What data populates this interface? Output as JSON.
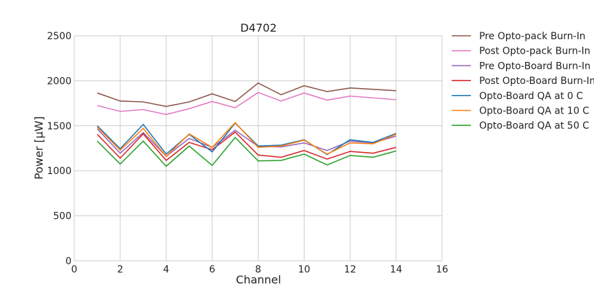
{
  "chart_data": {
    "type": "line",
    "title": "D4702",
    "xlabel": "Channel",
    "ylabel": "Power [μW]",
    "xlim": [
      0,
      16
    ],
    "ylim": [
      0,
      2500
    ],
    "xticks": [
      0,
      2,
      4,
      6,
      8,
      10,
      12,
      14,
      16
    ],
    "yticks": [
      0,
      500,
      1000,
      1500,
      2000,
      2500
    ],
    "grid": true,
    "legend_position": "outside-right",
    "x": [
      1,
      2,
      3,
      4,
      5,
      6,
      7,
      8,
      9,
      10,
      11,
      12,
      13,
      14
    ],
    "series": [
      {
        "name": "Pre Opto-pack Burn-In",
        "color": "#8c564b",
        "values": [
          1865,
          1775,
          1765,
          1715,
          1765,
          1855,
          1770,
          1975,
          1845,
          1945,
          1880,
          1920,
          1905,
          1890
        ]
      },
      {
        "name": "Post Opto-pack Burn-In",
        "color": "#e377c2",
        "values": [
          1725,
          1660,
          1680,
          1625,
          1690,
          1770,
          1700,
          1870,
          1775,
          1865,
          1785,
          1830,
          1810,
          1790
        ]
      },
      {
        "name": "Pre Opto-Board Burn-In",
        "color": "#9467bd",
        "values": [
          1465,
          1195,
          1425,
          1160,
          1360,
          1260,
          1450,
          1270,
          1265,
          1310,
          1225,
          1330,
          1310,
          1385
        ]
      },
      {
        "name": "Post Opto-Board Burn-In",
        "color": "#d62728",
        "values": [
          1405,
          1140,
          1410,
          1115,
          1315,
          1235,
          1430,
          1175,
          1150,
          1225,
          1130,
          1215,
          1195,
          1260
        ]
      },
      {
        "name": "Opto-Board QA at 0 C",
        "color": "#1f77b4",
        "values": [
          1500,
          1245,
          1515,
          1185,
          1405,
          1210,
          1530,
          1275,
          1285,
          1345,
          1180,
          1345,
          1315,
          1415
        ]
      },
      {
        "name": "Opto-Board QA at 10 C",
        "color": "#ff7f0e",
        "values": [
          1485,
          1230,
          1470,
          1160,
          1410,
          1260,
          1535,
          1260,
          1275,
          1340,
          1185,
          1310,
          1300,
          1405
        ]
      },
      {
        "name": "Opto-Board QA at 50 C",
        "color": "#2ca02c",
        "values": [
          1330,
          1075,
          1330,
          1050,
          1275,
          1060,
          1370,
          1110,
          1115,
          1185,
          1065,
          1170,
          1150,
          1220
        ]
      }
    ]
  }
}
